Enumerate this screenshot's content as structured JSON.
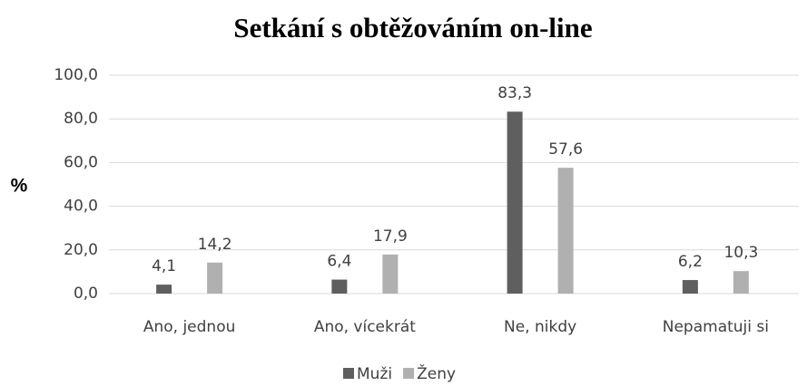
{
  "chart_data": {
    "type": "bar",
    "title": "Setkání s obtěžováním on-line",
    "y_label": "%",
    "categories": [
      "Ano, jednou",
      "Ano, vícekrát",
      "Ne, nikdy",
      "Nepamatuji si"
    ],
    "series": [
      {
        "name": "Muži",
        "color": "#5f5f5f",
        "values": [
          4.1,
          6.4,
          83.3,
          6.2
        ],
        "value_labels": [
          "4,1",
          "6,4",
          "83,3",
          "6,2"
        ]
      },
      {
        "name": "Ženy",
        "color": "#b0b0b0",
        "values": [
          14.2,
          17.9,
          57.6,
          10.3
        ],
        "value_labels": [
          "14,2",
          "17,9",
          "57,6",
          "10,3"
        ]
      }
    ],
    "ylim": [
      0,
      100
    ],
    "yticks": [
      {
        "value": 0,
        "label": "0,0"
      },
      {
        "value": 20,
        "label": "20,0"
      },
      {
        "value": 40,
        "label": "40,0"
      },
      {
        "value": 60,
        "label": "60,0"
      },
      {
        "value": 80,
        "label": "80,0"
      },
      {
        "value": 100,
        "label": "100,0"
      }
    ],
    "grid": true,
    "legend": "bottom"
  }
}
